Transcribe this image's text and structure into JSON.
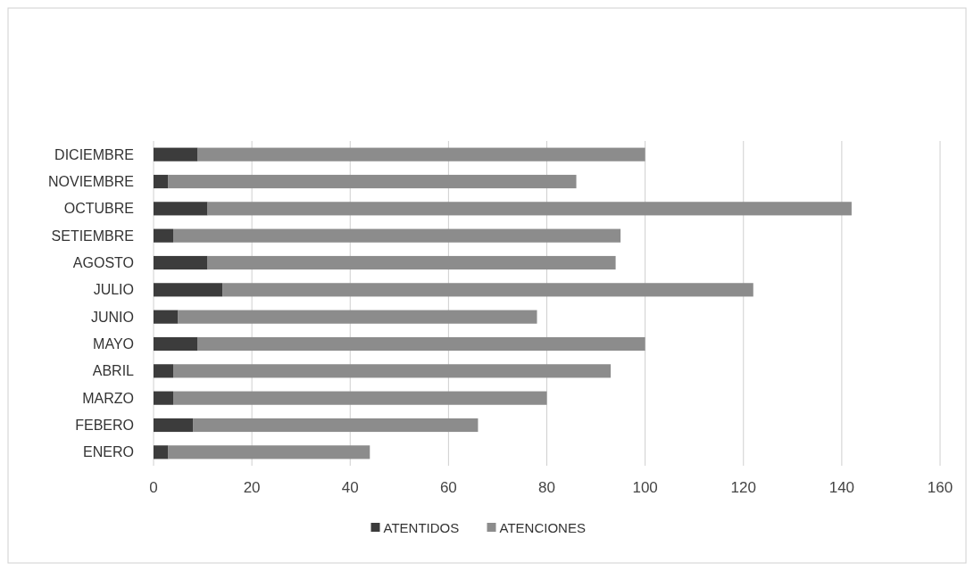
{
  "chart_data": {
    "type": "bar",
    "orientation": "horizontal",
    "stacked": true,
    "categories": [
      "DICIEMBRE",
      "NOVIEMBRE",
      "OCTUBRE",
      "SETIEMBRE",
      "AGOSTO",
      "JULIO",
      "JUNIO",
      "MAYO",
      "ABRIL",
      "MARZO",
      "FEBERO",
      "ENERO"
    ],
    "series": [
      {
        "name": "ATENTIDOS",
        "color": "#3c3c3c",
        "values": [
          9,
          3,
          11,
          4,
          11,
          14,
          5,
          9,
          4,
          4,
          8,
          3
        ]
      },
      {
        "name": "ATENCIONES",
        "color": "#8c8c8c",
        "values": [
          91,
          83,
          131,
          91,
          83,
          108,
          73,
          91,
          89,
          76,
          58,
          41
        ]
      }
    ],
    "xlim": [
      0,
      160
    ],
    "xticks": [
      0,
      20,
      40,
      60,
      80,
      100,
      120,
      140,
      160
    ],
    "grid": "x",
    "legend": "bottom"
  }
}
